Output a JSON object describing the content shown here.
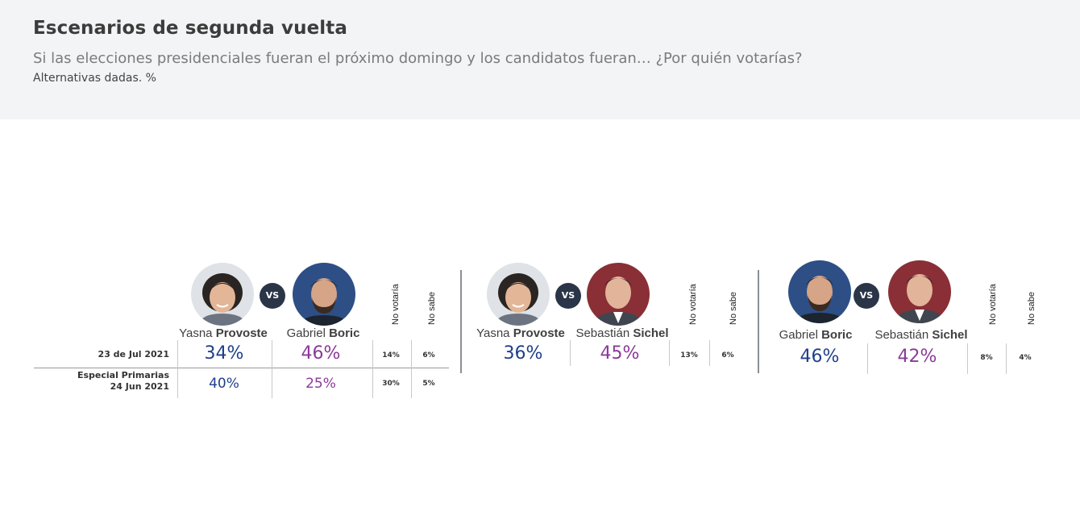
{
  "header": {
    "title": "Escenarios de segunda vuelta",
    "subtitle": "Si las elecciones presidenciales fueran el próximo domingo y los candidatos fueran… ¿Por quién votarías?",
    "note": "Alternativas dadas. %"
  },
  "row_labels": {
    "current": "23 de Jul 2021",
    "previous_line1": "Especial Primarias",
    "previous_line2": "24 Jun 2021"
  },
  "vs_label": "VS",
  "column_labels": {
    "no_votaria": "No votaría",
    "no_sabe": "No sabe"
  },
  "scenarios": [
    {
      "cand1": {
        "first": "Yasna",
        "last": "Provoste"
      },
      "cand2": {
        "first": "Gabriel",
        "last": "Boric"
      },
      "current": {
        "c1": "34%",
        "c2": "46%",
        "no_votaria": "14%",
        "no_sabe": "6%"
      },
      "previous": {
        "c1": "40%",
        "c2": "25%",
        "no_votaria": "30%",
        "no_sabe": "5%"
      }
    },
    {
      "cand1": {
        "first": "Yasna",
        "last": "Provoste"
      },
      "cand2": {
        "first": "Sebastián",
        "last": "Sichel"
      },
      "current": {
        "c1": "36%",
        "c2": "45%",
        "no_votaria": "13%",
        "no_sabe": "6%"
      }
    },
    {
      "cand1": {
        "first": "Gabriel",
        "last": "Boric"
      },
      "cand2": {
        "first": "Sebastián",
        "last": "Sichel"
      },
      "current": {
        "c1": "46%",
        "c2": "42%",
        "no_votaria": "8%",
        "no_sabe": "4%"
      }
    }
  ],
  "colors": {
    "candidate1": "#1f3f8c",
    "candidate2": "#8b3a98",
    "vs_badge": "#2b3548"
  },
  "chart_data": {
    "type": "table",
    "title": "Escenarios de segunda vuelta",
    "unit": "%",
    "scenarios": [
      {
        "candidates": [
          "Yasna Provoste",
          "Gabriel Boric"
        ],
        "columns": [
          "Yasna Provoste",
          "Gabriel Boric",
          "No votaría",
          "No sabe"
        ],
        "rows": [
          {
            "label": "23 de Jul 2021",
            "values": [
              34,
              46,
              14,
              6
            ]
          },
          {
            "label": "Especial Primarias 24 Jun 2021",
            "values": [
              40,
              25,
              30,
              5
            ]
          }
        ]
      },
      {
        "candidates": [
          "Yasna Provoste",
          "Sebastián Sichel"
        ],
        "columns": [
          "Yasna Provoste",
          "Sebastián Sichel",
          "No votaría",
          "No sabe"
        ],
        "rows": [
          {
            "label": "23 de Jul 2021",
            "values": [
              36,
              45,
              13,
              6
            ]
          }
        ]
      },
      {
        "candidates": [
          "Gabriel Boric",
          "Sebastián Sichel"
        ],
        "columns": [
          "Gabriel Boric",
          "Sebastián Sichel",
          "No votaría",
          "No sabe"
        ],
        "rows": [
          {
            "label": "23 de Jul 2021",
            "values": [
              46,
              42,
              8,
              4
            ]
          }
        ]
      }
    ]
  }
}
